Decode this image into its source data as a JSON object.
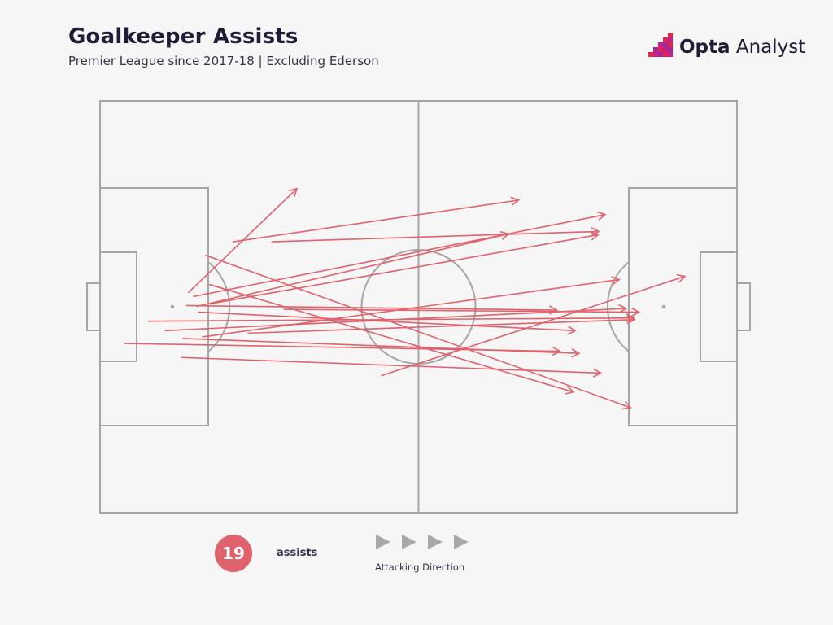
{
  "header": {
    "title": "Goalkeeper Assists",
    "subtitle": "Premier League since 2017-18 | Excluding Ederson",
    "brand_bold": "Opta",
    "brand_light": " Analyst"
  },
  "legend": {
    "count": "19",
    "count_label": "assists",
    "direction_label": "Attacking Direction"
  },
  "colors": {
    "arrow": "#e0626c",
    "pitch_lines": "#a6a6a6",
    "background": "#f6f6f6",
    "direction_arrows": "#a8a8a8"
  },
  "chart_data": {
    "type": "pass-map",
    "pitch": {
      "length": 100,
      "width": 100,
      "attacking_direction": "left-to-right"
    },
    "passes": [
      {
        "x_start": 13.9,
        "y_start": 46.5,
        "x_end": 30.9,
        "y_end": 21.3
      },
      {
        "x_start": 20.9,
        "y_start": 34.2,
        "x_end": 65.7,
        "y_end": 24.1
      },
      {
        "x_start": 14.7,
        "y_start": 47.5,
        "x_end": 79.3,
        "y_end": 27.6
      },
      {
        "x_start": 27.0,
        "y_start": 34.2,
        "x_end": 78.3,
        "y_end": 31.7
      },
      {
        "x_start": 15.2,
        "y_start": 49.9,
        "x_end": 64.1,
        "y_end": 32.3
      },
      {
        "x_start": 17.2,
        "y_start": 49.3,
        "x_end": 78.2,
        "y_end": 32.5
      },
      {
        "x_start": 16.1,
        "y_start": 57.3,
        "x_end": 81.5,
        "y_end": 43.4
      },
      {
        "x_start": 13.6,
        "y_start": 49.7,
        "x_end": 71.7,
        "y_end": 50.8
      },
      {
        "x_start": 15.5,
        "y_start": 51.3,
        "x_end": 74.6,
        "y_end": 55.8
      },
      {
        "x_start": 28.9,
        "y_start": 50.6,
        "x_end": 84.6,
        "y_end": 51.3
      },
      {
        "x_start": 7.6,
        "y_start": 53.5,
        "x_end": 83.8,
        "y_end": 52.7
      },
      {
        "x_start": 10.2,
        "y_start": 55.8,
        "x_end": 82.6,
        "y_end": 50.4
      },
      {
        "x_start": 13.0,
        "y_start": 57.7,
        "x_end": 75.2,
        "y_end": 61.3
      },
      {
        "x_start": 23.3,
        "y_start": 56.4,
        "x_end": 83.9,
        "y_end": 53.1
      },
      {
        "x_start": 3.9,
        "y_start": 58.9,
        "x_end": 72.2,
        "y_end": 60.8
      },
      {
        "x_start": 12.8,
        "y_start": 62.3,
        "x_end": 78.6,
        "y_end": 66.1
      },
      {
        "x_start": 16.6,
        "y_start": 37.5,
        "x_end": 83.3,
        "y_end": 74.5
      },
      {
        "x_start": 17.2,
        "y_start": 44.6,
        "x_end": 74.3,
        "y_end": 70.7
      },
      {
        "x_start": 44.2,
        "y_start": 66.7,
        "x_end": 91.8,
        "y_end": 42.6
      }
    ]
  }
}
